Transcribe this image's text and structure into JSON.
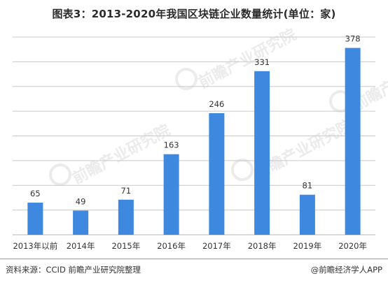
{
  "title": "图表3：2013-2020年我国区块链企业数量统计(单位：家)",
  "source_text": "资料来源：CCID 前瞻产业研究院整理",
  "credit_text": "@前瞻经济学人APP",
  "watermark_text": "前瞻产业研究院",
  "colors": {
    "bar": "#3f88e0",
    "grid": "#c9c9c9",
    "axis": "#b5b5b5"
  },
  "chart_data": {
    "type": "bar",
    "title": "图表3：2013-2020年我国区块链企业数量统计(单位：家)",
    "xlabel": "",
    "ylabel": "",
    "categories": [
      "2013年以前",
      "2014年",
      "2015年",
      "2016年",
      "2017年",
      "2018年",
      "2019年",
      "2020年"
    ],
    "values": [
      65,
      49,
      71,
      163,
      246,
      331,
      81,
      378
    ],
    "data_labels": [
      "65",
      "49",
      "71",
      "163",
      "246",
      "331",
      "81",
      "378"
    ],
    "ylim": [
      0,
      400
    ],
    "grid": true,
    "legend": "none"
  }
}
